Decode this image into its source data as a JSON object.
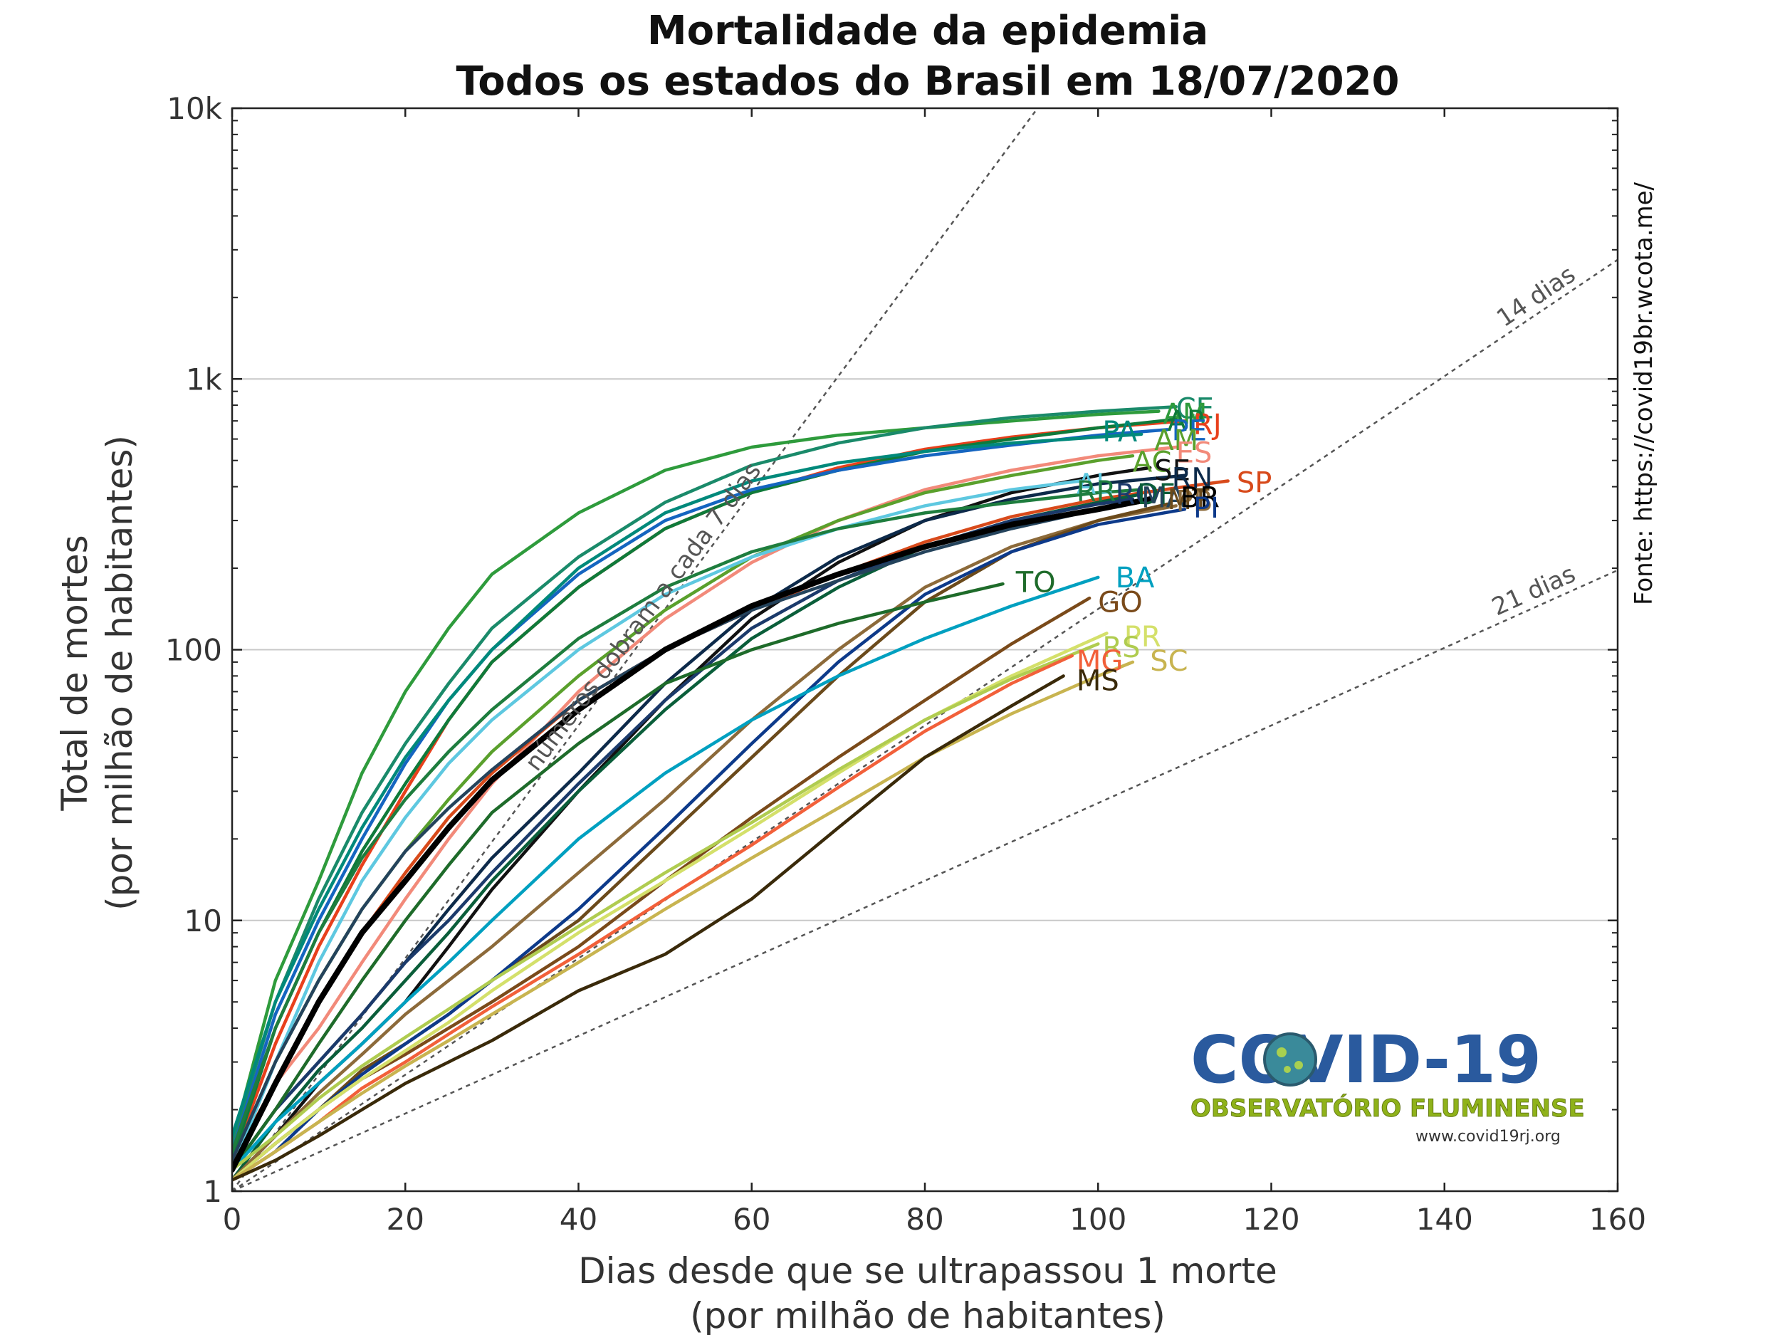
{
  "chart_data": {
    "type": "line",
    "title": "Mortalidade da epidemia",
    "subtitle": "Todos os estados do Brasil em 18/07/2020",
    "xlabel": "Dias desde que se ultrapassou 1 morte",
    "xlabel2": "(por milhão de habitantes)",
    "ylabel": "Total de mortes",
    "ylabel2": "(por milhão de habitantes)",
    "xlim": [
      0,
      160
    ],
    "ylim": [
      1,
      10000
    ],
    "yscale": "log",
    "xticks": [
      0,
      20,
      40,
      60,
      80,
      100,
      120,
      140,
      160
    ],
    "xtick_labels": [
      "0",
      "20",
      "40",
      "60",
      "80",
      "100",
      "120",
      "140",
      "160"
    ],
    "yticks": [
      1,
      10,
      100,
      1000,
      10000
    ],
    "ytick_labels": [
      "1",
      "10",
      "100",
      "1k",
      "10k"
    ],
    "grid": "horizontal major",
    "source": "Fonte: https://covid19br.wcota.me/",
    "reference_lines": [
      {
        "label": "números dobram a cada 7 dias",
        "doubling_days": 7
      },
      {
        "label": "14 dias",
        "doubling_days": 14
      },
      {
        "label": "21 dias",
        "doubling_days": 21
      }
    ],
    "series": [
      {
        "name": "AM",
        "color": "#2e9b3c",
        "x": [
          0,
          5,
          10,
          15,
          20,
          25,
          30,
          40,
          50,
          60,
          70,
          80,
          90,
          100,
          107
        ],
        "values": [
          1.5,
          6,
          14,
          35,
          70,
          120,
          190,
          320,
          460,
          560,
          620,
          660,
          700,
          740,
          760
        ]
      },
      {
        "name": "CE",
        "color": "#1a8a6a",
        "x": [
          0,
          5,
          10,
          15,
          20,
          25,
          30,
          40,
          50,
          60,
          70,
          80,
          90,
          100,
          109
        ],
        "values": [
          1.5,
          5,
          12,
          25,
          45,
          75,
          120,
          220,
          350,
          480,
          580,
          660,
          720,
          760,
          790
        ]
      },
      {
        "name": "RJ",
        "color": "#e8401c",
        "x": [
          0,
          5,
          10,
          15,
          20,
          25,
          30,
          40,
          50,
          60,
          70,
          80,
          90,
          100,
          110
        ],
        "values": [
          1.3,
          3.5,
          8,
          16,
          30,
          55,
          90,
          170,
          280,
          380,
          470,
          550,
          610,
          660,
          700
        ]
      },
      {
        "name": "AP",
        "color": "#0f7a3a",
        "x": [
          0,
          5,
          10,
          15,
          20,
          25,
          30,
          40,
          50,
          60,
          70,
          80,
          90,
          100,
          109
        ],
        "values": [
          1.3,
          4,
          9,
          18,
          32,
          55,
          90,
          170,
          280,
          380,
          460,
          540,
          600,
          660,
          710
        ]
      },
      {
        "name": "PE",
        "color": "#1565c0",
        "x": [
          0,
          5,
          10,
          15,
          20,
          25,
          30,
          40,
          50,
          60,
          70,
          80,
          90,
          100,
          108
        ],
        "values": [
          1.4,
          4.5,
          10,
          20,
          38,
          65,
          100,
          190,
          300,
          390,
          460,
          520,
          570,
          620,
          650
        ]
      },
      {
        "name": "PA",
        "color": "#00897b",
        "x": [
          0,
          5,
          10,
          15,
          20,
          25,
          30,
          40,
          50,
          60,
          70,
          80,
          90,
          100,
          105
        ],
        "values": [
          1.6,
          5,
          11,
          22,
          40,
          65,
          100,
          200,
          320,
          420,
          490,
          540,
          580,
          610,
          625
        ]
      },
      {
        "name": "ES",
        "color": "#f28a7a",
        "x": [
          0,
          5,
          10,
          15,
          20,
          25,
          30,
          40,
          50,
          60,
          70,
          80,
          90,
          100,
          109
        ],
        "values": [
          1.2,
          2.5,
          4,
          7,
          12,
          20,
          32,
          70,
          130,
          210,
          300,
          390,
          460,
          520,
          560
        ]
      },
      {
        "name": "AC",
        "color": "#5aa02c",
        "x": [
          0,
          5,
          10,
          15,
          20,
          25,
          30,
          40,
          50,
          60,
          70,
          80,
          90,
          100,
          104
        ],
        "values": [
          1.3,
          3,
          6,
          11,
          18,
          28,
          42,
          80,
          140,
          220,
          300,
          380,
          440,
          500,
          520
        ]
      },
      {
        "name": "SE",
        "color": "#111111",
        "x": [
          0,
          5,
          10,
          15,
          20,
          25,
          30,
          40,
          50,
          60,
          70,
          80,
          90,
          100,
          106
        ],
        "values": [
          1.1,
          1.6,
          2.5,
          3.5,
          5,
          8,
          13,
          30,
          65,
          130,
          210,
          300,
          380,
          440,
          470
        ]
      },
      {
        "name": "RN",
        "color": "#0d2a4a",
        "x": [
          0,
          5,
          10,
          15,
          20,
          25,
          30,
          40,
          50,
          60,
          70,
          80,
          90,
          100,
          110
        ],
        "values": [
          1.2,
          2,
          3,
          4.5,
          7,
          11,
          17,
          35,
          75,
          140,
          220,
          300,
          360,
          410,
          440
        ]
      },
      {
        "name": "SP",
        "color": "#d84a1b",
        "x": [
          0,
          5,
          10,
          15,
          20,
          25,
          30,
          40,
          50,
          60,
          70,
          80,
          90,
          100,
          110,
          115
        ],
        "values": [
          1.3,
          2.5,
          5,
          9,
          15,
          24,
          35,
          65,
          100,
          140,
          190,
          250,
          310,
          360,
          400,
          420
        ]
      },
      {
        "name": "AL",
        "color": "#5ec8e0",
        "x": [
          0,
          5,
          10,
          15,
          20,
          25,
          30,
          40,
          50,
          60,
          70,
          80,
          90,
          98
        ],
        "values": [
          1.2,
          3,
          7,
          14,
          24,
          38,
          55,
          100,
          160,
          220,
          280,
          340,
          390,
          420
        ]
      },
      {
        "name": "RR",
        "color": "#1e7d3e",
        "x": [
          0,
          5,
          10,
          15,
          20,
          25,
          30,
          40,
          50,
          60,
          70,
          80,
          90,
          100,
          105
        ],
        "values": [
          1.4,
          4,
          9,
          17,
          28,
          42,
          60,
          110,
          170,
          230,
          280,
          320,
          350,
          380,
          390
        ]
      },
      {
        "name": "DF",
        "color": "#0a5e3a",
        "x": [
          0,
          5,
          10,
          15,
          20,
          25,
          30,
          40,
          50,
          60,
          70,
          80,
          90,
          100,
          105
        ],
        "values": [
          1.1,
          1.8,
          2.8,
          4,
          6,
          9,
          14,
          30,
          60,
          110,
          170,
          240,
          300,
          350,
          375
        ]
      },
      {
        "name": "RO",
        "color": "#1b3a6b",
        "x": [
          0,
          5,
          10,
          15,
          20,
          25,
          30,
          40,
          50,
          60,
          70,
          80,
          90,
          100,
          104
        ],
        "values": [
          1.2,
          2,
          3,
          4.5,
          7,
          10,
          15,
          32,
          65,
          120,
          180,
          240,
          300,
          345,
          360
        ]
      },
      {
        "name": "MA",
        "color": "#24435c",
        "x": [
          0,
          5,
          10,
          15,
          20,
          25,
          30,
          40,
          50,
          60,
          70,
          80,
          90,
          100,
          106
        ],
        "values": [
          1.3,
          3,
          6,
          11,
          18,
          26,
          36,
          65,
          100,
          140,
          180,
          230,
          280,
          330,
          355
        ]
      },
      {
        "name": "PB",
        "color": "#8c6a3a",
        "x": [
          0,
          5,
          10,
          15,
          20,
          25,
          30,
          40,
          50,
          60,
          70,
          80,
          90,
          100,
          109
        ],
        "values": [
          1.1,
          1.6,
          2.3,
          3.2,
          4.5,
          6,
          8,
          15,
          28,
          55,
          100,
          170,
          240,
          300,
          340
        ]
      },
      {
        "name": "MT",
        "color": "#6b4a1b",
        "x": [
          0,
          5,
          10,
          15,
          20,
          25,
          30,
          40,
          50,
          60,
          70,
          80,
          90,
          100,
          108
        ],
        "values": [
          1.1,
          1.5,
          2,
          2.8,
          3.5,
          4.5,
          6,
          10,
          20,
          40,
          80,
          150,
          230,
          300,
          345
        ]
      },
      {
        "name": "BR",
        "color": "#000000",
        "x": [
          0,
          5,
          10,
          15,
          20,
          25,
          30,
          40,
          50,
          60,
          70,
          80,
          90,
          100,
          106
        ],
        "values": [
          1.2,
          2.5,
          5,
          9,
          14,
          22,
          33,
          60,
          100,
          145,
          190,
          240,
          290,
          330,
          360
        ]
      },
      {
        "name": "PI",
        "color": "#0d3a8a",
        "x": [
          0,
          5,
          10,
          15,
          20,
          25,
          30,
          40,
          50,
          60,
          70,
          80,
          90,
          100,
          110
        ],
        "values": [
          1.1,
          1.4,
          2,
          2.7,
          3.5,
          4.5,
          6,
          11,
          22,
          45,
          90,
          160,
          230,
          290,
          330
        ]
      },
      {
        "name": "TO",
        "color": "#1e6b2a",
        "x": [
          0,
          5,
          10,
          15,
          20,
          25,
          30,
          40,
          50,
          60,
          70,
          80,
          89
        ],
        "values": [
          1.2,
          2,
          3.5,
          6,
          10,
          16,
          25,
          45,
          75,
          100,
          125,
          150,
          175
        ]
      },
      {
        "name": "BA",
        "color": "#00a0c0",
        "x": [
          0,
          5,
          10,
          15,
          20,
          25,
          30,
          40,
          50,
          60,
          70,
          80,
          90,
          100
        ],
        "values": [
          1.2,
          1.8,
          2.5,
          3.5,
          5,
          7,
          10,
          20,
          35,
          55,
          80,
          110,
          145,
          185
        ]
      },
      {
        "name": "GO",
        "color": "#7a4a1a",
        "x": [
          0,
          5,
          10,
          15,
          20,
          25,
          30,
          40,
          50,
          60,
          70,
          80,
          90,
          99
        ],
        "values": [
          1.1,
          1.5,
          2,
          2.6,
          3.2,
          4,
          5,
          8,
          14,
          24,
          40,
          65,
          105,
          155
        ]
      },
      {
        "name": "PR",
        "color": "#d4e06a",
        "x": [
          0,
          5,
          10,
          15,
          20,
          25,
          30,
          40,
          50,
          60,
          70,
          80,
          90,
          101
        ],
        "values": [
          1.1,
          1.5,
          2,
          2.6,
          3.3,
          4.2,
          5.5,
          9,
          14,
          22,
          35,
          55,
          80,
          115
        ]
      },
      {
        "name": "RS",
        "color": "#b0cc50",
        "x": [
          0,
          5,
          10,
          15,
          20,
          25,
          30,
          40,
          50,
          60,
          70,
          80,
          90,
          100
        ],
        "values": [
          1.2,
          1.6,
          2.2,
          2.9,
          3.7,
          4.7,
          6,
          9.5,
          15,
          23,
          36,
          55,
          78,
          105
        ]
      },
      {
        "name": "MG",
        "color": "#f2603a",
        "x": [
          0,
          5,
          10,
          15,
          20,
          25,
          30,
          40,
          50,
          60,
          70,
          80,
          90,
          97
        ],
        "values": [
          1.1,
          1.4,
          1.8,
          2.4,
          3,
          3.8,
          4.8,
          7.5,
          12,
          19,
          31,
          50,
          75,
          95
        ]
      },
      {
        "name": "SC",
        "color": "#c8b450",
        "x": [
          0,
          5,
          10,
          15,
          20,
          25,
          30,
          40,
          50,
          60,
          70,
          80,
          90,
          100,
          104
        ],
        "values": [
          1.1,
          1.4,
          1.8,
          2.3,
          2.9,
          3.6,
          4.5,
          7,
          11,
          17,
          26,
          40,
          58,
          80,
          90
        ]
      },
      {
        "name": "MS",
        "color": "#3a2a0a",
        "x": [
          0,
          5,
          10,
          15,
          20,
          25,
          30,
          40,
          50,
          60,
          70,
          80,
          90,
          96
        ],
        "values": [
          1.1,
          1.3,
          1.6,
          2,
          2.5,
          3,
          3.6,
          5.5,
          7.5,
          12,
          22,
          40,
          62,
          80
        ]
      }
    ],
    "labels": [
      {
        "text": "CE",
        "color": "#1a8a6a",
        "x": 109,
        "y": 780
      },
      {
        "text": "AM",
        "color": "#2e9b3c",
        "x": 107.5,
        "y": 745
      },
      {
        "text": "RJ",
        "color": "#e8401c",
        "x": 111,
        "y": 680
      },
      {
        "text": "AP",
        "color": "#0f7a3a",
        "x": 108,
        "y": 700
      },
      {
        "text": "PE",
        "color": "#1565c0",
        "x": 108.5,
        "y": 645
      },
      {
        "text": "PA",
        "color": "#00897b",
        "x": 100.5,
        "y": 640
      },
      {
        "text": "AM",
        "color": "#5aa02c",
        "x": 106.5,
        "y": 595
      },
      {
        "text": "ES",
        "color": "#f28a7a",
        "x": 109,
        "y": 535
      },
      {
        "text": "AC",
        "color": "#5aa02c",
        "x": 104,
        "y": 495
      },
      {
        "text": "SE",
        "color": "#111111",
        "x": 106.5,
        "y": 460
      },
      {
        "text": "RN",
        "color": "#0d2a4a",
        "x": 108.5,
        "y": 430
      },
      {
        "text": "SP",
        "color": "#d84a1b",
        "x": 116,
        "y": 415
      },
      {
        "text": "AL",
        "color": "#5ec8e0",
        "x": 97.5,
        "y": 410
      },
      {
        "text": "RR",
        "color": "#1e7d3e",
        "x": 97.5,
        "y": 385
      },
      {
        "text": "RO",
        "color": "#1b3a6b",
        "x": 102,
        "y": 375
      },
      {
        "text": "DF",
        "color": "#0a5e3a",
        "x": 104.5,
        "y": 375
      },
      {
        "text": "MA",
        "color": "#24435c",
        "x": 105,
        "y": 365
      },
      {
        "text": "PB",
        "color": "#8c6a3a",
        "x": 109,
        "y": 355
      },
      {
        "text": "MT",
        "color": "#6b4a1b",
        "x": 108,
        "y": 360
      },
      {
        "text": "BR",
        "color": "#000000",
        "x": 109.5,
        "y": 365
      },
      {
        "text": "PI",
        "color": "#0d3a8a",
        "x": 111,
        "y": 335
      },
      {
        "text": "TO",
        "color": "#1e6b2a",
        "x": 90.5,
        "y": 178
      },
      {
        "text": "BA",
        "color": "#00a0c0",
        "x": 102,
        "y": 185
      },
      {
        "text": "GO",
        "color": "#7a4a1a",
        "x": 100,
        "y": 150
      },
      {
        "text": "PR",
        "color": "#d4e06a",
        "x": 103,
        "y": 112
      },
      {
        "text": "RS",
        "color": "#b0cc50",
        "x": 100.5,
        "y": 102
      },
      {
        "text": "MG",
        "color": "#f2603a",
        "x": 97.5,
        "y": 91
      },
      {
        "text": "SC",
        "color": "#c8b450",
        "x": 106,
        "y": 91
      },
      {
        "text": "MS",
        "color": "#3a2a0a",
        "x": 97.5,
        "y": 77
      }
    ]
  },
  "logo": {
    "title": "COVID-19",
    "subtitle": "OBSERVATÓRIO FLUMINENSE",
    "url": "www.covid19rj.org"
  }
}
